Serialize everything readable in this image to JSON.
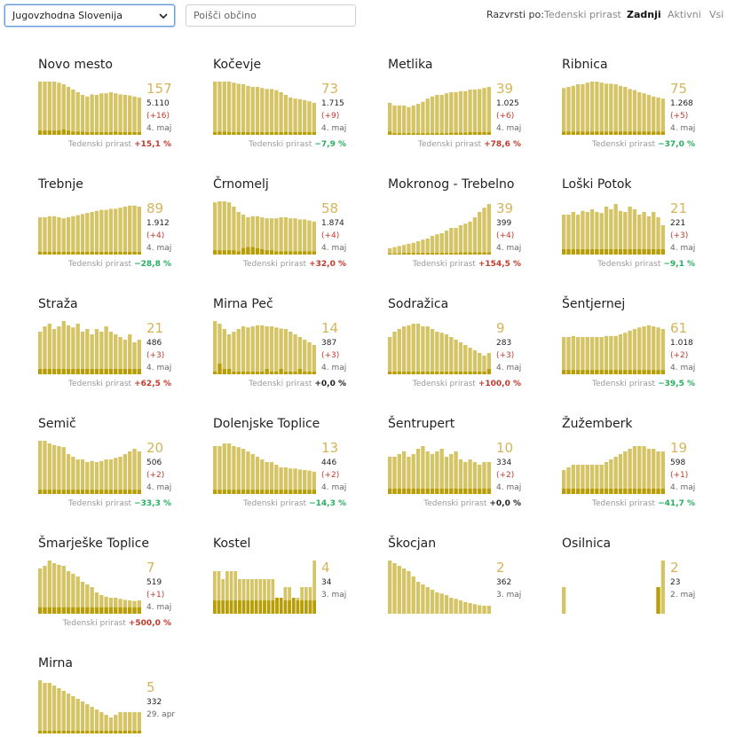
{
  "region_select": {
    "value": "Jugovzhodna Slovenija"
  },
  "search": {
    "placeholder": "Poišči občino"
  },
  "sort": {
    "label": "Razvrsti po:",
    "options": [
      "Tedenski prirast",
      "Zadnji",
      "Aktivni",
      "Vsi"
    ],
    "active": "Zadnji"
  },
  "colors": {
    "bar": "#d5c466",
    "bar_dark": "#b79e06",
    "big_number": "#d5b45a",
    "increase": "#c0392b",
    "decrease": "#27ae60",
    "highlight": "#f3c400"
  },
  "footer_label": "Tedenski prirast",
  "municipalities": [
    {
      "name": "Novo mesto",
      "active": "157",
      "total": "5.110",
      "delta": "(+16)",
      "date": "4. maj",
      "growth": "+15,1 %",
      "growth_dir": "up",
      "bars": [
        100,
        100,
        100,
        100,
        98,
        95,
        90,
        85,
        80,
        75,
        72,
        76,
        75,
        78,
        78,
        80,
        78,
        76,
        75,
        74,
        72,
        70
      ],
      "dark": [
        8,
        8,
        8,
        8,
        8,
        10,
        8,
        6,
        6,
        6,
        5,
        5,
        5,
        5,
        5,
        5,
        6,
        5,
        5,
        5,
        5,
        5
      ]
    },
    {
      "name": "Kočevje",
      "active": "73",
      "total": "1.715",
      "delta": "(+9)",
      "date": "4. maj",
      "growth": "−7,9 %",
      "growth_dir": "down",
      "bars": [
        100,
        100,
        100,
        100,
        98,
        96,
        95,
        92,
        90,
        90,
        88,
        86,
        86,
        84,
        80,
        75,
        70,
        68,
        67,
        65,
        63,
        60
      ],
      "dark": [
        5,
        6,
        6,
        5,
        5,
        5,
        5,
        5,
        5,
        5,
        5,
        5,
        5,
        5,
        5,
        5,
        5,
        5,
        5,
        5,
        5,
        5
      ]
    },
    {
      "name": "Metlika",
      "active": "39",
      "total": "1.025",
      "delta": "(+6)",
      "date": "4. maj",
      "growth": "+78,6 %",
      "growth_dir": "up",
      "bars": [
        60,
        55,
        55,
        55,
        52,
        55,
        58,
        62,
        68,
        72,
        75,
        75,
        78,
        80,
        80,
        82,
        82,
        85,
        85,
        86,
        88,
        90
      ],
      "dark": [
        6,
        3,
        3,
        3,
        3,
        3,
        3,
        3,
        3,
        3,
        3,
        3,
        3,
        4,
        4,
        4,
        4,
        5,
        5,
        5,
        5,
        5
      ]
    },
    {
      "name": "Ribnica",
      "active": "75",
      "total": "1.268",
      "delta": "(+5)",
      "date": "4. maj",
      "growth": "−37,0 %",
      "growth_dir": "down",
      "bars": [
        88,
        90,
        92,
        95,
        95,
        98,
        100,
        100,
        98,
        96,
        96,
        95,
        92,
        90,
        86,
        84,
        80,
        78,
        75,
        72,
        70,
        68
      ],
      "dark": [
        6,
        6,
        6,
        6,
        6,
        6,
        6,
        6,
        6,
        6,
        6,
        6,
        6,
        6,
        6,
        6,
        6,
        6,
        6,
        6,
        6,
        6
      ]
    },
    {
      "name": "Trebnje",
      "active": "89",
      "total": "1.912",
      "delta": "(+4)",
      "date": "4. maj",
      "growth": "−28,8 %",
      "growth_dir": "down",
      "bars": [
        70,
        70,
        72,
        72,
        70,
        68,
        70,
        72,
        74,
        76,
        78,
        80,
        82,
        84,
        84,
        86,
        86,
        88,
        90,
        92,
        92,
        90
      ],
      "dark": [
        5,
        5,
        5,
        5,
        5,
        5,
        5,
        5,
        5,
        5,
        5,
        5,
        5,
        5,
        5,
        5,
        5,
        5,
        5,
        5,
        5,
        5
      ]
    },
    {
      "name": "Črnomelj",
      "active": "58",
      "total": "1.874",
      "delta": "(+4)",
      "date": "4. maj",
      "growth": "+32,0 %",
      "growth_dir": "up",
      "bars": [
        98,
        100,
        100,
        98,
        90,
        80,
        75,
        70,
        72,
        72,
        70,
        68,
        68,
        68,
        70,
        70,
        68,
        68,
        66,
        66,
        64,
        62
      ],
      "dark": [
        8,
        8,
        8,
        8,
        8,
        6,
        12,
        14,
        14,
        12,
        10,
        8,
        8,
        6,
        6,
        6,
        6,
        6,
        6,
        6,
        6,
        6
      ]
    },
    {
      "name": "Mokronog - Trebelno",
      "active": "39",
      "total": "399",
      "delta": "(+4)",
      "date": "4. maj",
      "growth": "+154,5 %",
      "growth_dir": "up",
      "bars": [
        12,
        14,
        16,
        18,
        20,
        22,
        25,
        28,
        30,
        35,
        38,
        40,
        45,
        50,
        50,
        55,
        58,
        62,
        70,
        80,
        88,
        95
      ],
      "dark": [
        2,
        2,
        2,
        3,
        3,
        3,
        3,
        3,
        3,
        3,
        3,
        3,
        3,
        3,
        3,
        4,
        4,
        4,
        4,
        4,
        4,
        4
      ]
    },
    {
      "name": "Loški Potok",
      "active": "21",
      "total": "221",
      "delta": "(+3)",
      "date": "4. maj",
      "growth": "−9,1 %",
      "growth_dir": "down",
      "bars": [
        75,
        75,
        80,
        75,
        82,
        80,
        85,
        80,
        78,
        90,
        85,
        95,
        82,
        80,
        90,
        85,
        75,
        80,
        72,
        80,
        70,
        55
      ],
      "dark": [
        10,
        10,
        10,
        10,
        10,
        10,
        10,
        10,
        10,
        10,
        10,
        10,
        10,
        10,
        10,
        10,
        10,
        10,
        10,
        10,
        10,
        10
      ]
    },
    {
      "name": "Straža",
      "active": "21",
      "total": "486",
      "delta": "(+3)",
      "date": "4. maj",
      "growth": "+62,5 %",
      "growth_dir": "up",
      "bars": [
        80,
        90,
        95,
        85,
        90,
        100,
        92,
        88,
        95,
        80,
        85,
        75,
        85,
        80,
        90,
        80,
        75,
        70,
        65,
        75,
        60,
        65
      ],
      "dark": [
        10,
        10,
        10,
        10,
        10,
        10,
        10,
        10,
        10,
        10,
        10,
        10,
        10,
        10,
        10,
        10,
        10,
        10,
        10,
        10,
        10,
        10
      ]
    },
    {
      "name": "Mirna Peč",
      "active": "14",
      "total": "387",
      "delta": "(+3)",
      "date": "4. maj",
      "growth": "+0,0 %",
      "growth_dir": "neutral",
      "bars": [
        100,
        95,
        85,
        75,
        80,
        85,
        90,
        88,
        90,
        92,
        92,
        90,
        90,
        88,
        86,
        85,
        80,
        75,
        70,
        65,
        60,
        55
      ],
      "dark": [
        5,
        20,
        10,
        10,
        5,
        5,
        5,
        5,
        5,
        5,
        5,
        10,
        5,
        5,
        10,
        5,
        5,
        5,
        10,
        5,
        5,
        5
      ]
    },
    {
      "name": "Sodražica",
      "active": "9",
      "total": "283",
      "delta": "(+3)",
      "date": "4. maj",
      "growth": "+100,0 %",
      "growth_dir": "up",
      "bars": [
        70,
        80,
        85,
        90,
        92,
        95,
        95,
        90,
        90,
        85,
        80,
        78,
        75,
        70,
        65,
        60,
        55,
        50,
        45,
        40,
        35,
        40
      ],
      "dark": [
        5,
        5,
        5,
        5,
        5,
        5,
        5,
        5,
        5,
        5,
        5,
        5,
        5,
        5,
        5,
        5,
        5,
        5,
        5,
        5,
        5,
        10
      ]
    },
    {
      "name": "Šentjernej",
      "active": "61",
      "total": "1.018",
      "delta": "(+2)",
      "date": "4. maj",
      "growth": "−39,5 %",
      "growth_dir": "down",
      "bars": [
        70,
        70,
        72,
        70,
        70,
        70,
        70,
        70,
        70,
        72,
        72,
        72,
        75,
        78,
        82,
        85,
        88,
        90,
        92,
        90,
        88,
        85
      ],
      "dark": [
        8,
        8,
        8,
        8,
        8,
        8,
        8,
        8,
        8,
        8,
        8,
        8,
        8,
        8,
        8,
        8,
        8,
        8,
        8,
        8,
        8,
        8
      ]
    },
    {
      "name": "Semič",
      "active": "20",
      "total": "506",
      "delta": "(+2)",
      "date": "4. maj",
      "growth": "−33,3 %",
      "growth_dir": "down",
      "bars": [
        100,
        100,
        95,
        92,
        90,
        88,
        75,
        70,
        65,
        65,
        60,
        62,
        60,
        62,
        65,
        65,
        68,
        70,
        75,
        80,
        85,
        80
      ],
      "dark": [
        8,
        8,
        8,
        8,
        8,
        8,
        8,
        8,
        8,
        8,
        8,
        8,
        8,
        8,
        8,
        8,
        8,
        8,
        8,
        8,
        8,
        8
      ]
    },
    {
      "name": "Dolenjske Toplice",
      "active": "13",
      "total": "446",
      "delta": "(+2)",
      "date": "4. maj",
      "growth": "−14,3 %",
      "growth_dir": "down",
      "bars": [
        90,
        90,
        95,
        95,
        90,
        88,
        85,
        80,
        75,
        70,
        65,
        60,
        60,
        55,
        50,
        50,
        48,
        48,
        46,
        45,
        44,
        42
      ],
      "dark": [
        8,
        8,
        8,
        8,
        8,
        8,
        8,
        8,
        8,
        8,
        8,
        8,
        8,
        8,
        8,
        8,
        8,
        8,
        8,
        8,
        8,
        8
      ]
    },
    {
      "name": "Šentrupert",
      "active": "10",
      "total": "334",
      "delta": "(+2)",
      "date": "4. maj",
      "growth": "+0,0 %",
      "growth_dir": "neutral",
      "bars": [
        70,
        70,
        75,
        80,
        70,
        75,
        85,
        90,
        80,
        75,
        80,
        85,
        70,
        75,
        80,
        65,
        60,
        65,
        60,
        55,
        60,
        60
      ],
      "dark": [
        10,
        10,
        10,
        10,
        10,
        10,
        10,
        10,
        10,
        10,
        10,
        10,
        10,
        10,
        10,
        10,
        10,
        10,
        10,
        10,
        10,
        10
      ]
    },
    {
      "name": "Žužemberk",
      "active": "19",
      "total": "598",
      "delta": "(+1)",
      "date": "4. maj",
      "growth": "−41,7 %",
      "growth_dir": "down",
      "bars": [
        45,
        50,
        55,
        55,
        55,
        55,
        55,
        55,
        55,
        60,
        65,
        70,
        75,
        80,
        85,
        90,
        90,
        90,
        85,
        85,
        80,
        80
      ],
      "dark": [
        10,
        10,
        10,
        10,
        10,
        10,
        10,
        10,
        10,
        10,
        10,
        10,
        10,
        10,
        10,
        10,
        10,
        10,
        10,
        10,
        10,
        10
      ]
    },
    {
      "name": "Šmarješke Toplice",
      "active": "7",
      "total": "519",
      "delta": "(+1)",
      "date": "4. maj",
      "growth": "+500,0 %",
      "growth_dir": "up",
      "bars": [
        85,
        90,
        100,
        95,
        92,
        90,
        80,
        75,
        70,
        60,
        55,
        50,
        40,
        35,
        32,
        30,
        30,
        28,
        26,
        25,
        24,
        25
      ],
      "dark": [
        12,
        12,
        12,
        12,
        12,
        12,
        12,
        12,
        12,
        12,
        12,
        12,
        12,
        12,
        12,
        12,
        12,
        12,
        12,
        12,
        12,
        12
      ]
    },
    {
      "name": "Kostel",
      "active": "4",
      "total": "34",
      "delta": "",
      "date": "3. maj",
      "growth": "",
      "growth_dir": "neutral",
      "bars": [
        80,
        80,
        65,
        80,
        80,
        80,
        65,
        65,
        65,
        65,
        65,
        65,
        65,
        65,
        65,
        30,
        30,
        50,
        50,
        30,
        30,
        50,
        50,
        50,
        100
      ],
      "dark": [
        25,
        25,
        25,
        25,
        25,
        25,
        25,
        25,
        25,
        25,
        25,
        25,
        25,
        25,
        25,
        30,
        30,
        25,
        25,
        30,
        25,
        25,
        25,
        25,
        25
      ]
    },
    {
      "name": "Škocjan",
      "active": "2",
      "total": "362",
      "delta": "",
      "date": "3. maj",
      "growth": "",
      "growth_dir": "neutral",
      "bars": [
        100,
        95,
        90,
        85,
        80,
        70,
        60,
        55,
        50,
        45,
        40,
        38,
        35,
        30,
        28,
        25,
        22,
        20,
        18,
        16,
        15,
        15
      ],
      "dark": [
        0,
        0,
        0,
        0,
        0,
        0,
        0,
        0,
        0,
        0,
        0,
        0,
        0,
        0,
        0,
        0,
        0,
        0,
        0,
        0,
        0,
        0
      ]
    },
    {
      "name": "Osilnica",
      "active": "2",
      "total": "23",
      "delta": "",
      "date": "2. maj",
      "growth": "",
      "growth_dir": "neutral",
      "bars": [
        50,
        0,
        0,
        0,
        0,
        0,
        0,
        0,
        0,
        0,
        0,
        0,
        0,
        0,
        0,
        0,
        0,
        0,
        0,
        0,
        50,
        100
      ],
      "dark": [
        0,
        0,
        0,
        0,
        0,
        0,
        0,
        0,
        0,
        0,
        0,
        0,
        0,
        0,
        0,
        0,
        0,
        0,
        0,
        0,
        50,
        0
      ]
    },
    {
      "name": "Mirna",
      "active": "5",
      "total": "332",
      "delta": "",
      "date": "29. apr",
      "growth": "",
      "growth_dir": "neutral",
      "bars": [
        100,
        95,
        95,
        90,
        85,
        80,
        75,
        70,
        65,
        60,
        55,
        50,
        45,
        40,
        35,
        30,
        35,
        40,
        40,
        40,
        40,
        40
      ],
      "dark": [
        5,
        5,
        5,
        5,
        5,
        5,
        5,
        5,
        5,
        5,
        5,
        5,
        5,
        5,
        5,
        5,
        5,
        5,
        5,
        5,
        5,
        5
      ]
    }
  ]
}
